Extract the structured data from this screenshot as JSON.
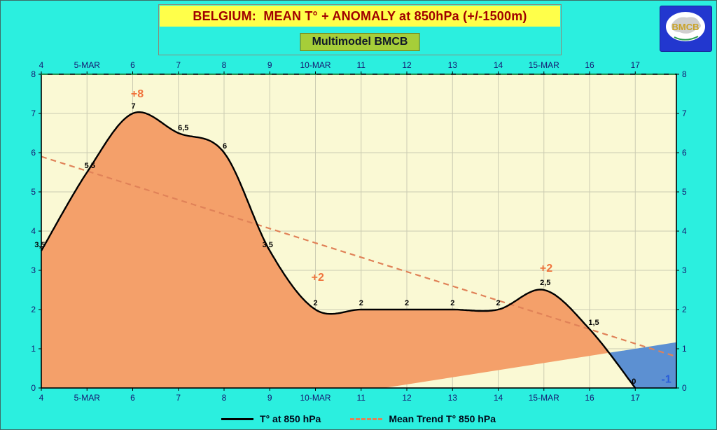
{
  "header": {
    "title": "BELGIUM:  MEAN T° + ANOMALY at 850hPa (+/-1500m)",
    "subtitle": "Multimodel BMCB"
  },
  "logo": {
    "text": "BMCB"
  },
  "legend": {
    "temp_label": "T° at 850 hPa",
    "trend_label": "Mean Trend T° 850 hPa"
  },
  "chart_data": {
    "type": "line",
    "title": "BELGIUM:  MEAN T° + ANOMALY at 850hPa (+/-1500m)",
    "subtitle": "Multimodel BMCB",
    "x_axis": {
      "lim": [
        4,
        17.9
      ],
      "ticks": [
        {
          "x": 4,
          "label": "4"
        },
        {
          "x": 5,
          "label": "5-MAR"
        },
        {
          "x": 6,
          "label": "6"
        },
        {
          "x": 7,
          "label": "7"
        },
        {
          "x": 8,
          "label": "8"
        },
        {
          "x": 9,
          "label": "9"
        },
        {
          "x": 10,
          "label": "10-MAR"
        },
        {
          "x": 11,
          "label": "11"
        },
        {
          "x": 12,
          "label": "12"
        },
        {
          "x": 13,
          "label": "13"
        },
        {
          "x": 14,
          "label": "14"
        },
        {
          "x": 15,
          "label": "15-MAR"
        },
        {
          "x": 16,
          "label": "16"
        },
        {
          "x": 17,
          "label": "17"
        }
      ]
    },
    "y_axis": {
      "lim": [
        0,
        8
      ],
      "ticks": [
        0,
        1,
        2,
        3,
        4,
        5,
        6,
        7,
        8
      ]
    },
    "series": [
      {
        "name": "T° at 850 hPa",
        "style": "solid-black",
        "points": [
          {
            "x": 4,
            "y": 3.5,
            "label": "3,5",
            "dx": -2,
            "dy": -5
          },
          {
            "x": 5,
            "y": 5.5,
            "label": "5,5",
            "dx": 4,
            "dy": -6
          },
          {
            "x": 6,
            "y": 7,
            "label": "7",
            "dx": 1,
            "dy": -7
          },
          {
            "x": 7,
            "y": 6.5,
            "label": "6,5",
            "dx": 7,
            "dy": -4
          },
          {
            "x": 8,
            "y": 6,
            "label": "6",
            "dx": 1,
            "dy": -6
          },
          {
            "x": 9,
            "y": 3.5,
            "label": "3,5",
            "dx": -3,
            "dy": -5
          },
          {
            "x": 10,
            "y": 2,
            "label": "2",
            "dx": 0,
            "dy": -6
          },
          {
            "x": 11,
            "y": 2,
            "label": "2",
            "dx": 0,
            "dy": -6
          },
          {
            "x": 12,
            "y": 2,
            "label": "2",
            "dx": 0,
            "dy": -6
          },
          {
            "x": 13,
            "y": 2,
            "label": "2",
            "dx": 0,
            "dy": -6
          },
          {
            "x": 14,
            "y": 2,
            "label": "2",
            "dx": 0,
            "dy": -6
          },
          {
            "x": 15,
            "y": 2.5,
            "label": "2,5",
            "dx": 2,
            "dy": -7
          },
          {
            "x": 16,
            "y": 1.5,
            "label": "1,5",
            "dx": 6,
            "dy": -6
          },
          {
            "x": 17,
            "y": 0,
            "label": "0",
            "dx": -2,
            "dy": -6
          }
        ]
      },
      {
        "name": "Mean Trend T° 850 hPa",
        "style": "dashed-orange",
        "points": [
          {
            "x": 4,
            "y": 5.9
          },
          {
            "x": 17.9,
            "y": 0.8
          }
        ]
      }
    ],
    "normal_line": {
      "points": [
        {
          "x": 4,
          "y": -1.3636
        },
        {
          "x": 17.9,
          "y": 1.1636
        }
      ]
    },
    "anomaly_annotations": [
      {
        "text": "+8",
        "x": 6.1,
        "y": 7.5,
        "kind": "warm"
      },
      {
        "text": "+2",
        "x": 10.05,
        "y": 2.82,
        "kind": "warm"
      },
      {
        "text": "+2",
        "x": 15.05,
        "y": 3.05,
        "kind": "warm"
      },
      {
        "text": "-1",
        "x": 17.68,
        "y": 0.22,
        "kind": "cold"
      }
    ],
    "colors": {
      "background": "#2BEFDF",
      "plot_bg": "#FAF9D4",
      "grid": "#CBCBB2",
      "warm_fill": "#F4A06A",
      "cold_fill": "#5C90D2",
      "temp_line": "#000000",
      "trend_line": "#E08258",
      "warm_text": "#F0733C",
      "cold_text": "#2A5ED8",
      "axis_text": "#161670",
      "title_text": "#A00000",
      "title_bg": "#FFFF4A",
      "subtitle_bg": "#A6CE39"
    }
  }
}
